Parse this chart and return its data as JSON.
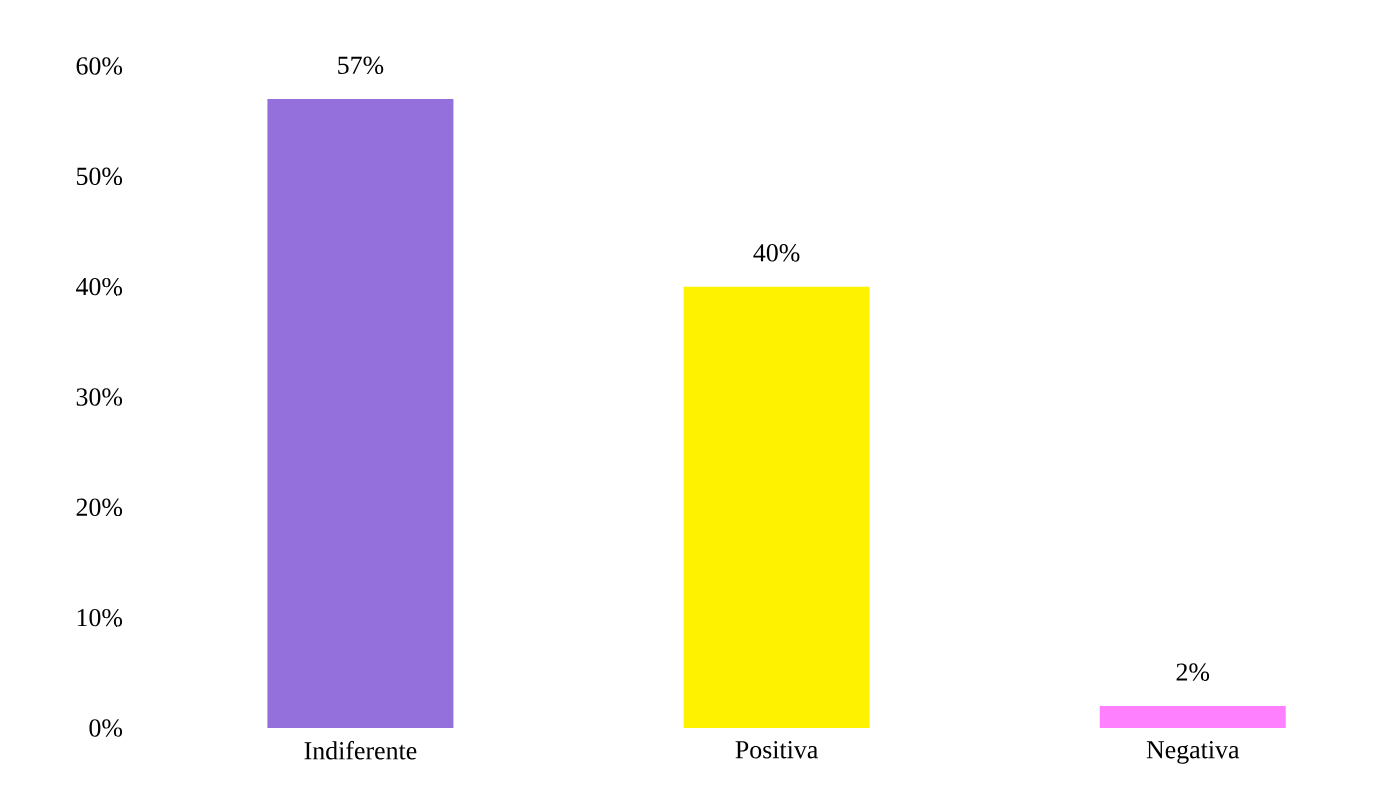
{
  "chart_data": {
    "type": "bar",
    "categories": [
      "Indiferente",
      "Positiva",
      "Negativa"
    ],
    "values": [
      57,
      40,
      2
    ],
    "colors": [
      "#9370db",
      "#fff200",
      "#ff80ff"
    ],
    "value_labels": [
      "57%",
      "40%",
      "2%"
    ],
    "ylim": [
      0,
      60
    ],
    "yticks": [
      {
        "value": 0,
        "label": "0%"
      },
      {
        "value": 10,
        "label": "10%"
      },
      {
        "value": 20,
        "label": "20%"
      },
      {
        "value": 30,
        "label": "30%"
      },
      {
        "value": 40,
        "label": "40%"
      },
      {
        "value": 50,
        "label": "50%"
      },
      {
        "value": 60,
        "label": "60%"
      }
    ],
    "grid": false
  }
}
